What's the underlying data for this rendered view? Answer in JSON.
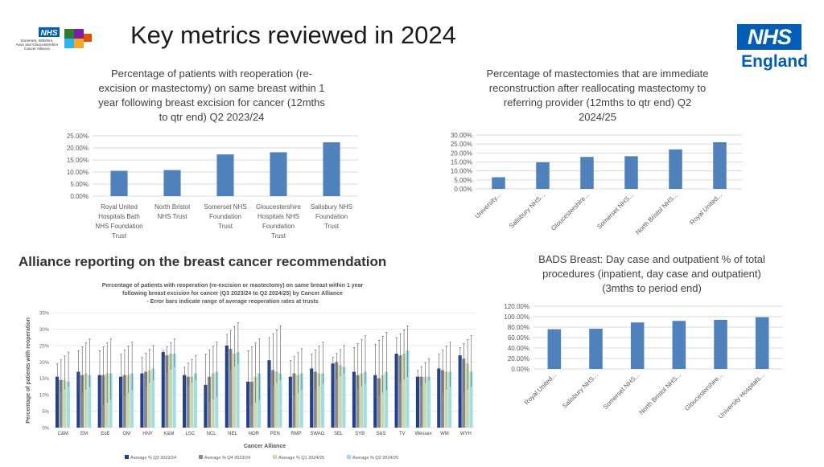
{
  "page": {
    "title": "Key metrics reviewed in 2024",
    "logo_left_text": [
      "NHS",
      "Somerset, Wiltshire,",
      "Avon and Gloucestershire",
      "Cancer Alliance"
    ],
    "logo_right_nhs": "NHS",
    "logo_right_region": "England"
  },
  "chart_data": [
    {
      "id": "reoperation",
      "type": "bar",
      "title_lines": [
        "Percentage of patients with reoperation (re-",
        "excision or mastectomy) on same breast within 1",
        "year following breast excision for cancer (12mths",
        "to qtr end) Q2 2023/24"
      ],
      "categories": [
        [
          "Royal United",
          "Hospitals Bath",
          "NHS Foundation",
          "Trust"
        ],
        [
          "North Bristol",
          "NHS Trust"
        ],
        [
          "Somerset NHS",
          "Foundation",
          "Trust"
        ],
        [
          "Gloucestershire",
          "Hospitals NHS",
          "Foundation",
          "Trust"
        ],
        [
          "Salisbury NHS",
          "Foundation",
          "Trust"
        ]
      ],
      "values": [
        10.5,
        10.8,
        17.3,
        18.2,
        22.3
      ],
      "ylim": [
        0,
        25
      ],
      "yticks": [
        "0.00%",
        "5.00%",
        "10.00%",
        "15.00%",
        "20.00%",
        "25.00%"
      ],
      "color": "#4f81bd",
      "grid": true
    },
    {
      "id": "reconstruction",
      "type": "bar",
      "title_lines": [
        "Percentage of mastectomies that are immediate",
        "reconstruction after reallocating mastectomy to",
        "referring provider (12mths to qtr end) Q2",
        "2024/25"
      ],
      "categories": [
        "University...",
        "Salisbury NHS...",
        "Gloucestershire...",
        "Somerset NHS...",
        "North Bristol NHS...",
        "Royal United..."
      ],
      "values": [
        6.5,
        14.8,
        17.8,
        18.2,
        22.0,
        26.0
      ],
      "ylim": [
        0,
        30
      ],
      "yticks": [
        "0.00%",
        "5.00%",
        "10.00%",
        "15.00%",
        "20.00%",
        "25.00%",
        "30.00%"
      ],
      "color": "#4f81bd",
      "grid": true
    },
    {
      "id": "bads",
      "type": "bar",
      "title_lines": [
        "BADS Breast: Day case and outpatient % of total",
        "procedures (inpatient, day case and outpatient)",
        "(3mths to period end)"
      ],
      "categories": [
        "Royal United...",
        "Salisbury NHS...",
        "Somerset NHS...",
        "North Bristol NHS...",
        "Gloucestershire...",
        "University Hospitals..."
      ],
      "values": [
        76,
        77,
        89,
        92,
        94,
        99
      ],
      "ylim": [
        0,
        120
      ],
      "yticks": [
        "0.00%",
        "20.00%",
        "40.00%",
        "60.00%",
        "80.00%",
        "100.00%",
        "120.00%"
      ],
      "color": "#4f81bd",
      "grid": true
    },
    {
      "id": "alliance",
      "type": "bar",
      "panel_heading": "Alliance reporting on the breast cancer recommendation",
      "title_lines": [
        "Percentage of patients with reoperation (re-excision or mastectomy) on same breast within 1 year",
        "following breast excision for cancer (Q3 2023/24 to Q2 2024/25) by Cancer Alliance",
        "- Error bars indicate range of average reoperation rates at trusts"
      ],
      "xlabel": "Cancer Alliance",
      "ylabel": "Percentage of patients with reoperation",
      "categories": [
        "C&M",
        "EM",
        "EoE",
        "GM",
        "HNY",
        "K&M",
        "LSC",
        "NCL",
        "NEL",
        "NOR",
        "PEN",
        "RMP",
        "SWAG",
        "SEL",
        "SYB",
        "S&S",
        "TV",
        "Wessex",
        "WM",
        "WYH"
      ],
      "ylim": [
        0,
        35
      ],
      "yticks": [
        "0%",
        "5%",
        "10%",
        "15%",
        "20%",
        "25%",
        "30%",
        "35%"
      ],
      "series": [
        {
          "name": "Average % Q3 2023/24",
          "color": "#1f3f94",
          "values": [
            15.5,
            17,
            16,
            15.5,
            16.5,
            23,
            16,
            13,
            25,
            14,
            20.5,
            15.5,
            18,
            19.5,
            17,
            16,
            22.5,
            15.5,
            18,
            22
          ]
        },
        {
          "name": "Average % Q4 2023/24",
          "color": "#8a8a8a",
          "values": [
            14.5,
            16,
            16,
            16,
            17,
            22,
            15.5,
            15.5,
            24,
            14,
            17.5,
            16.5,
            17,
            20,
            16,
            15,
            22,
            15.5,
            17.5,
            21
          ]
        },
        {
          "name": "Average % Q1 2024/25",
          "color": "#c9d8a8",
          "values": [
            14.5,
            16.5,
            16.5,
            16,
            17.5,
            22.5,
            15.5,
            16.5,
            22.5,
            15.5,
            17,
            16,
            16.5,
            19,
            16.5,
            16,
            22.5,
            15.5,
            17,
            19.5
          ]
        },
        {
          "name": "Average % Q2 2024/25",
          "color": "#9fdde6",
          "values": [
            14,
            16,
            16.5,
            16.5,
            18,
            22.5,
            16.5,
            17,
            23,
            16.5,
            16.5,
            16.5,
            16.5,
            18.5,
            17,
            17,
            23.5,
            15.5,
            17,
            17
          ]
        }
      ],
      "error_high": [
        23,
        27,
        27,
        26,
        25,
        27,
        22,
        26,
        32,
        27,
        31,
        24,
        26,
        25,
        28,
        29,
        31,
        21,
        26,
        28
      ],
      "error_low": [
        10,
        10,
        6,
        9,
        12,
        16,
        12,
        7,
        17,
        6,
        12,
        9,
        11,
        14,
        11,
        9,
        13,
        12,
        10,
        10
      ]
    }
  ]
}
